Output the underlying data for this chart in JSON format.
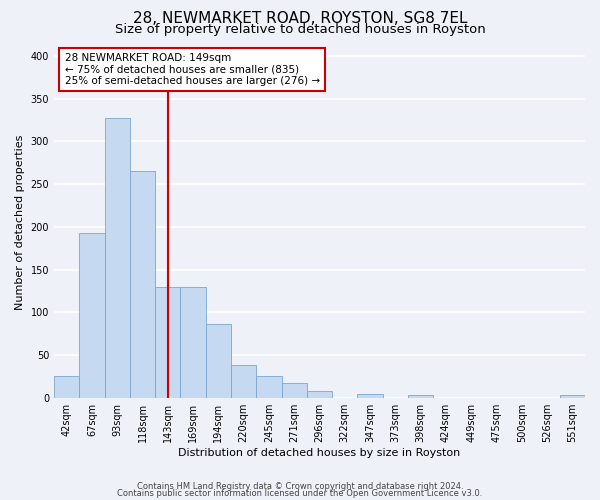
{
  "title": "28, NEWMARKET ROAD, ROYSTON, SG8 7EL",
  "subtitle": "Size of property relative to detached houses in Royston",
  "xlabel": "Distribution of detached houses by size in Royston",
  "ylabel": "Number of detached properties",
  "bin_labels": [
    "42sqm",
    "67sqm",
    "93sqm",
    "118sqm",
    "143sqm",
    "169sqm",
    "194sqm",
    "220sqm",
    "245sqm",
    "271sqm",
    "296sqm",
    "322sqm",
    "347sqm",
    "373sqm",
    "398sqm",
    "424sqm",
    "449sqm",
    "475sqm",
    "500sqm",
    "526sqm",
    "551sqm"
  ],
  "bar_values": [
    25,
    193,
    328,
    266,
    130,
    130,
    86,
    38,
    26,
    17,
    8,
    0,
    4,
    0,
    3,
    0,
    0,
    0,
    0,
    0,
    3
  ],
  "bar_color": "#c5d9f0",
  "bar_edge_color": "#7ba7d0",
  "vline_x_index": 4,
  "vline_color": "#cc0000",
  "annotation_line1": "28 NEWMARKET ROAD: 149sqm",
  "annotation_line2": "← 75% of detached houses are smaller (835)",
  "annotation_line3": "25% of semi-detached houses are larger (276) →",
  "annotation_box_color": "#ffffff",
  "annotation_box_edge": "#cc0000",
  "ylim": [
    0,
    410
  ],
  "yticks": [
    0,
    50,
    100,
    150,
    200,
    250,
    300,
    350,
    400
  ],
  "footer_line1": "Contains HM Land Registry data © Crown copyright and database right 2024.",
  "footer_line2": "Contains public sector information licensed under the Open Government Licence v3.0.",
  "bg_color": "#eef2f8",
  "plot_bg_color": "#eef2f8",
  "grid_color": "#ffffff",
  "title_fontsize": 11,
  "subtitle_fontsize": 9.5,
  "axis_label_fontsize": 8,
  "tick_fontsize": 7,
  "annotation_fontsize": 7.5,
  "footer_fontsize": 6
}
